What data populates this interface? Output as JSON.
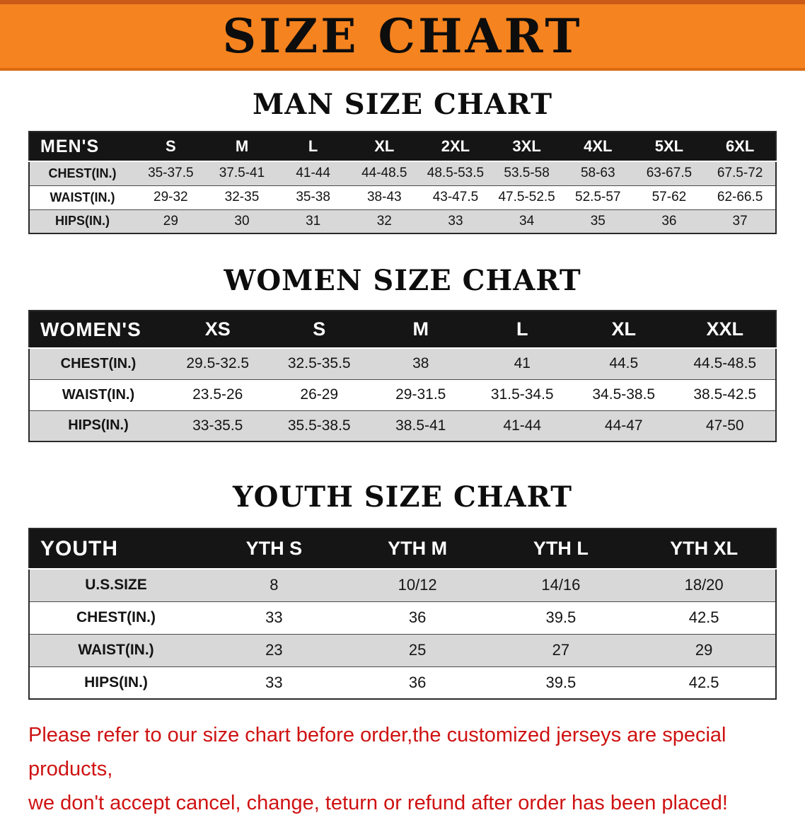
{
  "banner": {
    "title": "SIZE CHART"
  },
  "colors": {
    "banner_bg": "#F5831F",
    "table_header_bg": "#151515",
    "stripe_row": "#d8d8d8",
    "disclaimer_text": "#cf1212"
  },
  "sections": [
    {
      "id": "men",
      "heading": "MAN SIZE CHART",
      "table": {
        "header": [
          "MEN'S",
          "S",
          "M",
          "L",
          "XL",
          "2XL",
          "3XL",
          "4XL",
          "5XL",
          "6XL"
        ],
        "rows": [
          [
            "CHEST(IN.)",
            "35-37.5",
            "37.5-41",
            "41-44",
            "44-48.5",
            "48.5-53.5",
            "53.5-58",
            "58-63",
            "63-67.5",
            "67.5-72"
          ],
          [
            "WAIST(IN.)",
            "29-32",
            "32-35",
            "35-38",
            "38-43",
            "43-47.5",
            "47.5-52.5",
            "52.5-57",
            "57-62",
            "62-66.5"
          ],
          [
            "HIPS(IN.)",
            "29",
            "30",
            "31",
            "32",
            "33",
            "34",
            "35",
            "36",
            "37"
          ]
        ]
      }
    },
    {
      "id": "women",
      "heading": "WOMEN SIZE CHART",
      "table": {
        "header": [
          "WOMEN'S",
          "XS",
          "S",
          "M",
          "L",
          "XL",
          "XXL"
        ],
        "rows": [
          [
            "CHEST(IN.)",
            "29.5-32.5",
            "32.5-35.5",
            "38",
            "41",
            "44.5",
            "44.5-48.5"
          ],
          [
            "WAIST(IN.)",
            "23.5-26",
            "26-29",
            "29-31.5",
            "31.5-34.5",
            "34.5-38.5",
            "38.5-42.5"
          ],
          [
            "HIPS(IN.)",
            "33-35.5",
            "35.5-38.5",
            "38.5-41",
            "41-44",
            "44-47",
            "47-50"
          ]
        ]
      }
    },
    {
      "id": "youth",
      "heading": "YOUTH SIZE CHART",
      "table": {
        "header": [
          "YOUTH",
          "YTH S",
          "YTH M",
          "YTH L",
          "YTH XL"
        ],
        "rows": [
          [
            "U.S.SIZE",
            "8",
            "10/12",
            "14/16",
            "18/20"
          ],
          [
            "CHEST(IN.)",
            "33",
            "36",
            "39.5",
            "42.5"
          ],
          [
            "WAIST(IN.)",
            "23",
            "25",
            "27",
            "29"
          ],
          [
            "HIPS(IN.)",
            "33",
            "36",
            "39.5",
            "42.5"
          ]
        ]
      }
    }
  ],
  "disclaimer": {
    "line1": "Please refer to our size chart before order,the customized jerseys are special products,",
    "line2": "we don't accept cancel, change, teturn or refund after order has been placed!"
  }
}
